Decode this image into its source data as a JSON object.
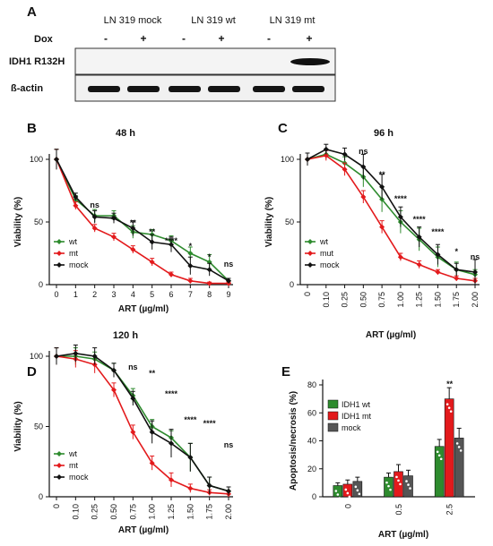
{
  "panelA": {
    "letter": "A",
    "groups": [
      "LN 319 mock",
      "LN 319 wt",
      "LN 319 mt"
    ],
    "dox_label": "Dox",
    "dox_marks": [
      "-",
      "+",
      "-",
      "+",
      "-",
      "+"
    ],
    "band_labels": [
      "IDH1 R132H",
      "ß-actin"
    ]
  },
  "colors": {
    "wt": "#2e8b2e",
    "mt": "#e31a1c",
    "mock": "#111111",
    "bar_mock": "#555555"
  },
  "chart_data": [
    {
      "id": "B",
      "type": "line",
      "title": "48 h",
      "xlabel": "ART (µg/ml)",
      "ylabel": "Viability (%)",
      "categories": [
        "0",
        "1",
        "2",
        "3",
        "4",
        "5",
        "6",
        "7",
        "8",
        "9"
      ],
      "ylim": [
        0,
        100
      ],
      "yticks": [
        "0",
        "50",
        "100"
      ],
      "series": [
        {
          "name": "wt",
          "values": [
            100,
            68,
            55,
            55,
            42,
            40,
            35,
            25,
            18,
            3
          ],
          "err": [
            8,
            3,
            5,
            4,
            5,
            4,
            4,
            5,
            6,
            2
          ]
        },
        {
          "name": "mt",
          "values": [
            100,
            63,
            45,
            38,
            28,
            18,
            8,
            3,
            1,
            1
          ],
          "err": [
            8,
            3,
            3,
            3,
            3,
            3,
            2,
            2,
            1,
            1
          ]
        },
        {
          "name": "mock",
          "values": [
            100,
            70,
            54,
            53,
            45,
            34,
            32,
            15,
            12,
            3
          ],
          "err": [
            8,
            3,
            5,
            4,
            6,
            6,
            6,
            7,
            5,
            2
          ]
        }
      ],
      "annotations": [
        "ns",
        "**",
        "**",
        "**",
        "****",
        "*",
        "*",
        "ns"
      ],
      "legend": "left"
    },
    {
      "id": "C",
      "type": "line",
      "title": "96 h",
      "xlabel": "ART (µg/ml)",
      "ylabel": "Viability (%)",
      "categories": [
        "0",
        "0.10",
        "0.25",
        "0.50",
        "0.75",
        "1.00",
        "1.25",
        "1.50",
        "1.75",
        "2.00"
      ],
      "ylim": [
        0,
        100
      ],
      "yticks": [
        "0",
        "50",
        "100"
      ],
      "series": [
        {
          "name": "wt",
          "values": [
            100,
            104,
            97,
            86,
            68,
            50,
            36,
            22,
            12,
            8
          ],
          "err": [
            5,
            4,
            5,
            8,
            10,
            9,
            9,
            8,
            6,
            4
          ]
        },
        {
          "name": "mut",
          "values": [
            100,
            103,
            92,
            70,
            46,
            22,
            16,
            10,
            5,
            3
          ],
          "err": [
            5,
            4,
            5,
            5,
            5,
            3,
            3,
            2,
            2,
            2
          ]
        },
        {
          "name": "mock",
          "values": [
            100,
            108,
            104,
            94,
            78,
            54,
            38,
            24,
            12,
            10
          ],
          "err": [
            5,
            4,
            5,
            10,
            10,
            8,
            8,
            8,
            5,
            10
          ]
        }
      ],
      "annotations": [
        "ns",
        "**",
        "****",
        "****",
        "****",
        "*",
        "ns"
      ],
      "legend": "left"
    },
    {
      "id": "D",
      "type": "line",
      "title": "120 h",
      "xlabel": "ART (µg/ml)",
      "ylabel": "Viability (%)",
      "categories": [
        "0",
        "0.10",
        "0.25",
        "0.50",
        "0.75",
        "1.00",
        "1.25",
        "1.50",
        "1.75",
        "2.00"
      ],
      "ylim": [
        0,
        100
      ],
      "yticks": [
        "0",
        "50",
        "100"
      ],
      "series": [
        {
          "name": "wt",
          "values": [
            100,
            100,
            98,
            90,
            72,
            50,
            42,
            28,
            8,
            4
          ],
          "err": [
            6,
            6,
            5,
            5,
            5,
            5,
            5,
            10,
            6,
            3
          ]
        },
        {
          "name": "mt",
          "values": [
            100,
            98,
            94,
            76,
            46,
            24,
            12,
            6,
            3,
            2
          ],
          "err": [
            6,
            6,
            6,
            5,
            5,
            5,
            5,
            3,
            2,
            2
          ]
        },
        {
          "name": "mock",
          "values": [
            100,
            102,
            100,
            90,
            70,
            46,
            38,
            28,
            8,
            4
          ],
          "err": [
            6,
            6,
            6,
            5,
            5,
            8,
            10,
            10,
            6,
            3
          ]
        }
      ],
      "annotations": [
        "ns",
        "**",
        "****",
        "****",
        "****",
        "ns"
      ],
      "legend": "left"
    },
    {
      "id": "E",
      "type": "bar",
      "xlabel": "ART (µg/ml)",
      "ylabel": "Apoptosis/necrosis (%)",
      "categories": [
        "0",
        "0.5",
        "2.5"
      ],
      "ylim": [
        0,
        80
      ],
      "yticks": [
        "0",
        "20",
        "40",
        "60",
        "80"
      ],
      "series": [
        {
          "name": "IDH1 wt",
          "values": [
            8,
            14,
            36
          ],
          "err": [
            2,
            3,
            5
          ]
        },
        {
          "name": "IDH1 mt",
          "values": [
            9,
            18,
            70
          ],
          "err": [
            3,
            5,
            8
          ]
        },
        {
          "name": "mock",
          "values": [
            11,
            15,
            42
          ],
          "err": [
            3,
            4,
            7
          ]
        }
      ],
      "annotations": [
        "**"
      ],
      "legend": "top-left"
    }
  ]
}
